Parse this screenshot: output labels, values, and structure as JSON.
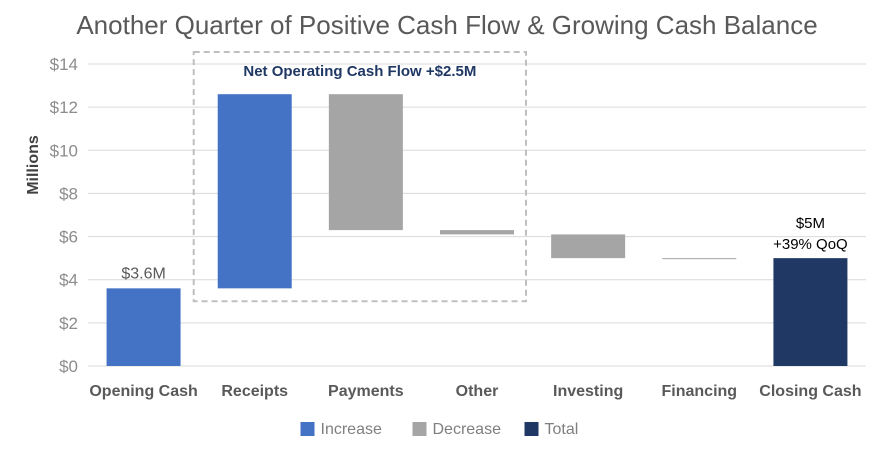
{
  "title": "Another Quarter of Positive Cash Flow & Growing Cash Balance",
  "chart_data": {
    "type": "bar",
    "subtype": "waterfall",
    "ylabel": "Millions",
    "ylim": [
      0,
      14
    ],
    "yticks": [
      "$0",
      "$2",
      "$4",
      "$6",
      "$8",
      "$10",
      "$12",
      "$14"
    ],
    "grid": true,
    "legend_position": "bottom",
    "categories": [
      "Opening Cash",
      "Receipts",
      "Payments",
      "Other",
      "Investing",
      "Financing",
      "Closing Cash"
    ],
    "bars": [
      {
        "category": "Opening Cash",
        "kind": "total",
        "start": 0,
        "end": 3.6,
        "label": "$3.6M"
      },
      {
        "category": "Receipts",
        "kind": "increase",
        "start": 3.6,
        "end": 12.6,
        "label": ""
      },
      {
        "category": "Payments",
        "kind": "decrease",
        "start": 12.6,
        "end": 6.3,
        "label": ""
      },
      {
        "category": "Other",
        "kind": "decrease",
        "start": 6.3,
        "end": 6.1,
        "label": ""
      },
      {
        "category": "Investing",
        "kind": "decrease",
        "start": 6.1,
        "end": 5.0,
        "label": ""
      },
      {
        "category": "Financing",
        "kind": "decrease",
        "start": 5.0,
        "end": 4.97,
        "label": ""
      },
      {
        "category": "Closing Cash",
        "kind": "total",
        "start": 0,
        "end": 5.0,
        "label": "$5M",
        "label2": "+39% QoQ"
      }
    ],
    "annotation": {
      "text": "Net Operating Cash Flow +$2.5M",
      "spans": [
        "Receipts",
        "Other"
      ]
    },
    "legend": [
      {
        "name": "Increase",
        "color": "#4472c4"
      },
      {
        "name": "Decrease",
        "color": "#a5a5a5"
      },
      {
        "name": "Total",
        "color": "#203864"
      }
    ],
    "colors": {
      "opening": "#4472c4",
      "increase": "#4472c4",
      "decrease": "#a5a5a5",
      "total": "#203864",
      "grid": "#d9d9d9",
      "annotation_border": "#bfbfbf"
    }
  }
}
